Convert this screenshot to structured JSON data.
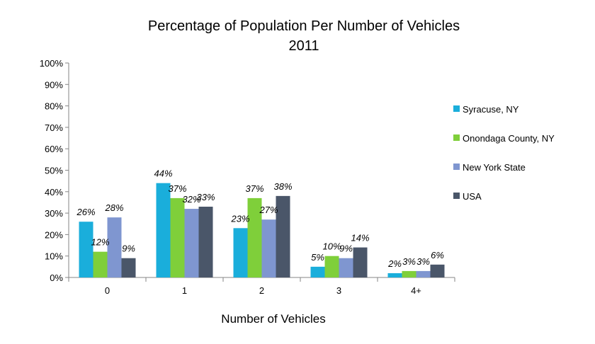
{
  "chart_data": {
    "type": "bar",
    "title": "Percentage of Population Per Number of Vehicles",
    "subtitle": "2011",
    "xlabel": "Number of Vehicles",
    "ylabel": "",
    "categories": [
      "0",
      "1",
      "2",
      "3",
      "4+"
    ],
    "ylim": [
      0,
      100
    ],
    "yticks": [
      "0%",
      "10%",
      "20%",
      "30%",
      "40%",
      "50%",
      "60%",
      "70%",
      "80%",
      "90%",
      "100%"
    ],
    "grid": false,
    "legend_position": "right",
    "series": [
      {
        "name": "Syracuse, NY",
        "color": "#1AAEDB",
        "values": [
          26,
          44,
          23,
          5,
          2
        ],
        "labels": [
          "26%",
          "44%",
          "23%",
          "5%",
          "2%"
        ]
      },
      {
        "name": "Onondaga County, NY",
        "color": "#7FCF3A",
        "values": [
          12,
          37,
          37,
          10,
          3
        ],
        "labels": [
          "12%",
          "37%",
          "37%",
          "10%",
          "3%"
        ]
      },
      {
        "name": "New York State",
        "color": "#7F96D0",
        "values": [
          28,
          32,
          27,
          9,
          3
        ],
        "labels": [
          "28%",
          "32%",
          "27%",
          "9%",
          "3%"
        ]
      },
      {
        "name": "USA",
        "color": "#4A5669",
        "values": [
          9,
          33,
          38,
          14,
          6
        ],
        "labels": [
          "9%",
          "33%",
          "38%",
          "14%",
          "6%"
        ]
      }
    ]
  }
}
